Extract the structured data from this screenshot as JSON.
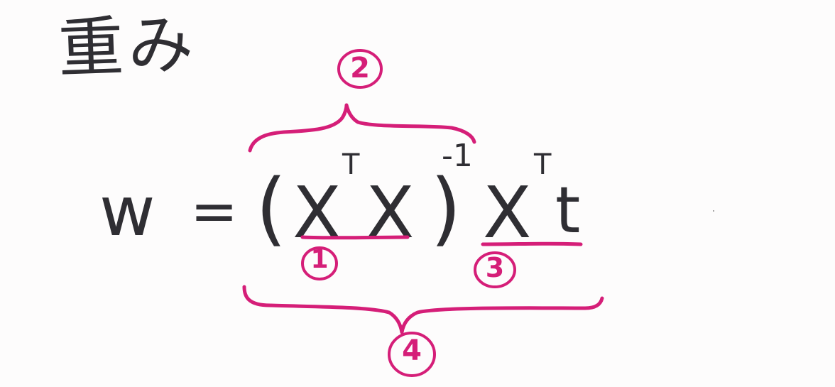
{
  "title": "重み",
  "equation": {
    "lhs": "w",
    "equals": "=",
    "open_paren": "(",
    "x1": "X",
    "sup_t1": "T",
    "x2": "X",
    "close_paren": ")",
    "sup_inv": "-1",
    "x3": "X",
    "sup_t2": "T",
    "t": "t"
  },
  "annotations": {
    "n1": "1",
    "n2": "2",
    "n3": "3",
    "n4": "4"
  },
  "colors": {
    "ink": "#2f2e33",
    "marker": "#d51e78",
    "paper": "#fdfcfc"
  }
}
